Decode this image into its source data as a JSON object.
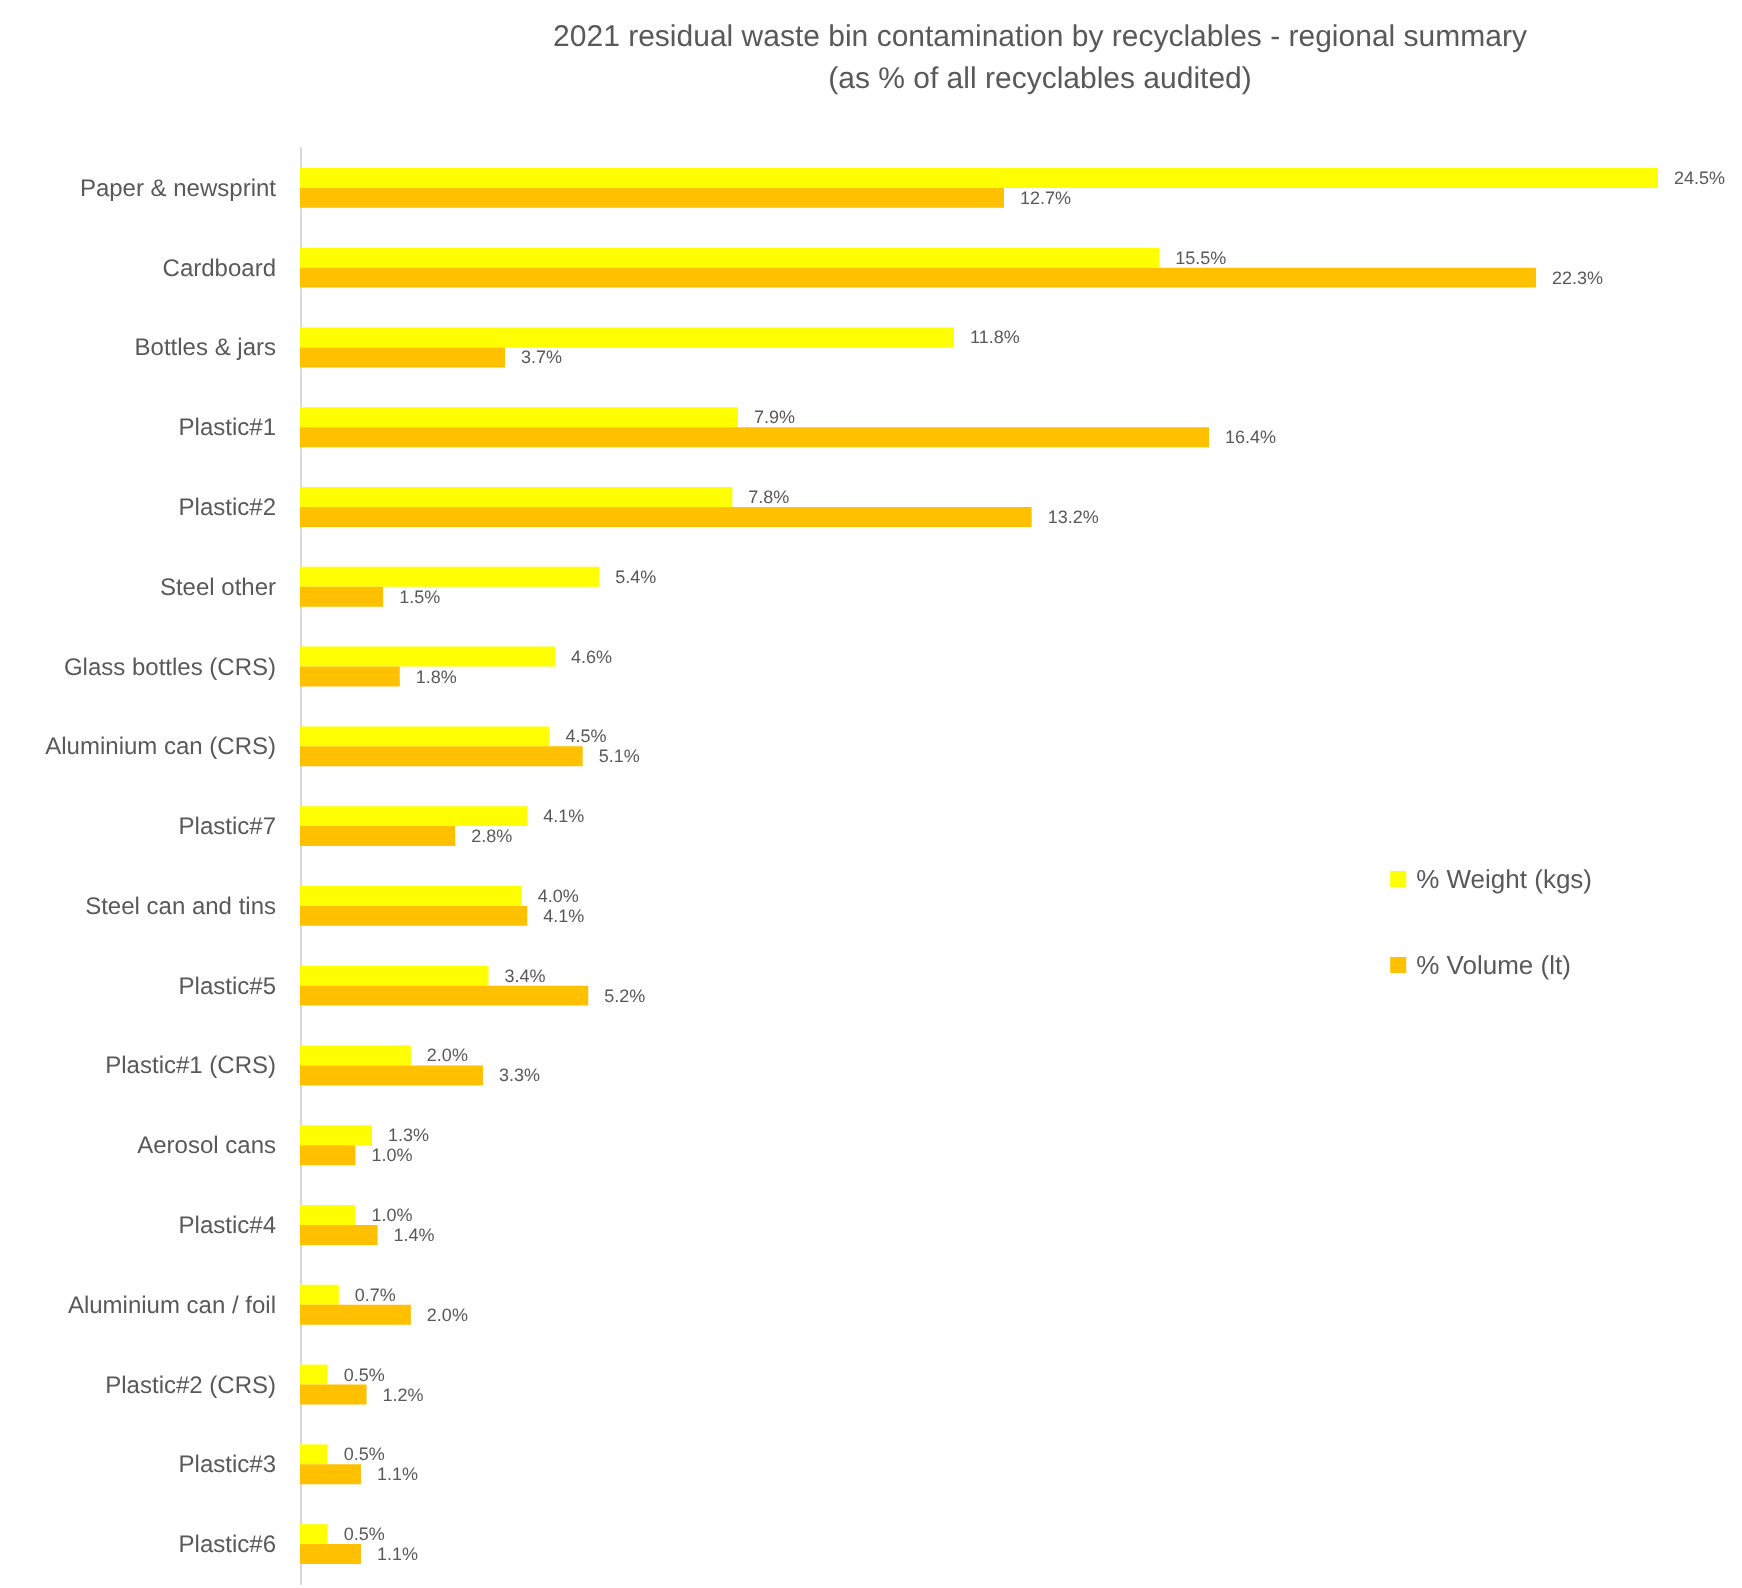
{
  "chart_data": {
    "type": "bar",
    "orientation": "horizontal",
    "title": "2021 residual waste bin contamination by recyclables - regional summary",
    "subtitle": "(as % of all recyclables audited)",
    "categories": [
      "Paper & newsprint",
      "Cardboard",
      "Bottles & jars",
      "Plastic#1",
      "Plastic#2",
      "Steel other",
      "Glass bottles (CRS)",
      "Aluminium can (CRS)",
      "Plastic#7",
      "Steel can and tins",
      "Plastic#5",
      "Plastic#1 (CRS)",
      "Aerosol cans",
      "Plastic#4",
      "Aluminium can / foil",
      "Plastic#2 (CRS)",
      "Plastic#3",
      "Plastic#6"
    ],
    "series": [
      {
        "name": "% Weight (kgs)",
        "color": "#ffff00",
        "values": [
          24.5,
          15.5,
          11.8,
          7.9,
          7.8,
          5.4,
          4.6,
          4.5,
          4.1,
          4.0,
          3.4,
          2.0,
          1.3,
          1.0,
          0.7,
          0.5,
          0.5,
          0.5
        ],
        "value_labels": [
          "24.5%",
          "15.5%",
          "11.8%",
          "7.9%",
          "7.8%",
          "5.4%",
          "4.6%",
          "4.5%",
          "4.1%",
          "4.0%",
          "3.4%",
          "2.0%",
          "1.3%",
          "1.0%",
          "0.7%",
          "0.5%",
          "0.5%",
          "0.5%"
        ]
      },
      {
        "name": "% Volume (lt)",
        "color": "#ffc000",
        "values": [
          12.7,
          22.3,
          3.7,
          16.4,
          13.2,
          1.5,
          1.8,
          5.1,
          2.8,
          4.1,
          5.2,
          3.3,
          1.0,
          1.4,
          2.0,
          1.2,
          1.1,
          1.1
        ],
        "value_labels": [
          "12.7%",
          "22.3%",
          "3.7%",
          "16.4%",
          "13.2%",
          "1.5%",
          "1.8%",
          "5.1%",
          "2.8%",
          "4.1%",
          "5.2%",
          "3.3%",
          "1.0%",
          "1.4%",
          "2.0%",
          "1.2%",
          "1.1%",
          "1.1%"
        ]
      }
    ],
    "legend": "right"
  }
}
